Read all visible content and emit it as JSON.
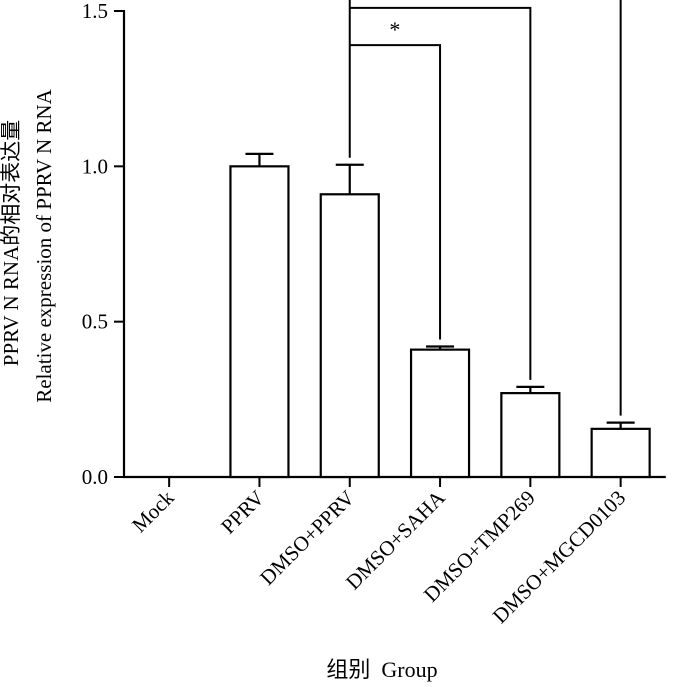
{
  "chart_data": {
    "type": "bar",
    "categories": [
      "Mock",
      "PPRV",
      "DMSO+PPRV",
      "DMSO+SAHA",
      "DMSO+TMP269",
      "DMSO+MGCD0103"
    ],
    "values": [
      0,
      1.0,
      0.91,
      0.41,
      0.27,
      0.155
    ],
    "errors": [
      0,
      0.04,
      0.095,
      0.01,
      0.02,
      0.02
    ],
    "ylabel_zh": "PPRV N RNA的相对表达量",
    "ylabel_en": "Relative expression of PPRV N RNA",
    "xlabel": "组别  Group",
    "ylim": [
      0,
      1.5
    ],
    "yticks": [
      0.0,
      0.5,
      1.0,
      1.5
    ],
    "ytick_labels": [
      "0.0",
      "0.5",
      "1.0",
      "1.5"
    ],
    "grid": false,
    "bar_fill": "#ffffff",
    "bar_stroke": "#000000",
    "significance": [
      {
        "from": "DMSO+PPRV",
        "to": "DMSO+SAHA",
        "label": "*",
        "level": 1.39
      },
      {
        "from": "DMSO+PPRV",
        "to": "DMSO+TMP269",
        "label": "*",
        "level": 1.51
      },
      {
        "from": "DMSO+PPRV",
        "to": "DMSO+MGCD0103",
        "label": "* *",
        "level": 1.69
      }
    ]
  }
}
